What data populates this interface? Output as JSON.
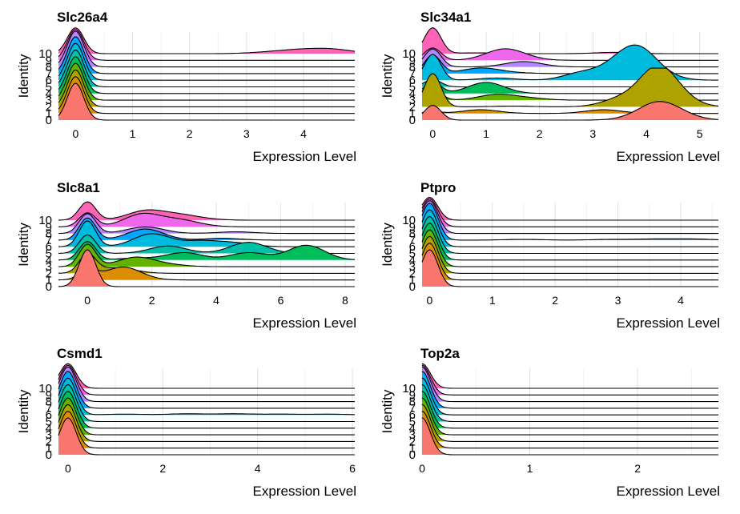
{
  "identity_levels": [
    "0",
    "1",
    "2",
    "3",
    "4",
    "5",
    "6",
    "7",
    "8",
    "9",
    "10"
  ],
  "cluster_colors": [
    "#F8766D",
    "#DB8E00",
    "#AEA200",
    "#64B200",
    "#00BD5C",
    "#00C1A7",
    "#00BADE",
    "#00A6FF",
    "#B385FF",
    "#EF67EB",
    "#FF63B6"
  ],
  "chart_data": [
    {
      "type": "ridgeline",
      "title": "Slc26a4",
      "xlabel": "Expression Level",
      "ylabel": "Identity",
      "xlim": [
        -0.3,
        4.9
      ],
      "x_ticks": [
        0,
        1,
        2,
        3,
        4
      ],
      "x_tick_labels": [
        "0",
        "1",
        "2",
        "3",
        "4"
      ],
      "series": [
        {
          "values": [
            [
              0,
              1.0
            ]
          ]
        },
        {
          "values": [
            [
              0,
              1.0
            ]
          ]
        },
        {
          "values": [
            [
              0,
              1.0
            ]
          ]
        },
        {
          "values": [
            [
              0,
              1.0
            ]
          ]
        },
        {
          "values": [
            [
              0,
              1.0
            ]
          ]
        },
        {
          "values": [
            [
              0,
              1.0
            ]
          ]
        },
        {
          "values": [
            [
              0,
              1.0
            ]
          ]
        },
        {
          "values": [
            [
              0,
              1.0
            ]
          ]
        },
        {
          "values": [
            [
              0,
              1.0
            ]
          ]
        },
        {
          "values": [
            [
              0,
              1.0
            ]
          ]
        },
        {
          "values": [
            [
              0,
              1.0
            ],
            [
              3.3,
              0.04
            ],
            [
              3.6,
              0.02
            ],
            [
              3.85,
              0.09
            ],
            [
              4.15,
              0.05
            ],
            [
              4.4,
              0.1
            ],
            [
              4.7,
              0.07
            ]
          ]
        }
      ]
    },
    {
      "type": "ridgeline",
      "title": "Slc34a1",
      "xlabel": "Expression Level",
      "ylabel": "Identity",
      "xlim": [
        -0.2,
        5.35
      ],
      "x_ticks": [
        0,
        1,
        2,
        3,
        4,
        5
      ],
      "x_tick_labels": [
        "0",
        "1",
        "2",
        "3",
        "4",
        "5"
      ],
      "series": [
        {
          "values": [
            [
              0,
              0.4
            ],
            [
              3.8,
              0.05
            ],
            [
              4.2,
              0.4
            ],
            [
              4.6,
              0.15
            ]
          ]
        },
        {
          "values": [
            [
              0,
              0.05
            ],
            [
              0.9,
              0.1
            ],
            [
              3.2,
              0.1
            ]
          ]
        },
        {
          "values": [
            [
              0,
              0.9
            ],
            [
              1.5,
              0.02
            ],
            [
              3.5,
              0.2
            ],
            [
              4.2,
              1.0
            ],
            [
              4.6,
              0.2
            ]
          ]
        },
        {
          "values": [
            [
              0,
              0.3
            ],
            [
              1.2,
              0.15
            ],
            [
              1.8,
              0.05
            ]
          ]
        },
        {
          "values": [
            [
              0,
              0.3
            ],
            [
              1.0,
              0.3
            ]
          ]
        },
        {
          "values": [
            [
              0,
              0.2
            ]
          ]
        },
        {
          "values": [
            [
              0,
              0.7
            ],
            [
              1.2,
              0.06
            ],
            [
              2.8,
              0.2
            ],
            [
              3.5,
              0.4
            ],
            [
              3.9,
              0.7
            ],
            [
              4.4,
              0.05
            ]
          ]
        },
        {
          "values": [
            [
              0,
              0.5
            ],
            [
              0.9,
              0.15
            ],
            [
              1.5,
              0.02
            ]
          ]
        },
        {
          "values": [
            [
              0,
              0.5
            ],
            [
              1.7,
              0.15
            ]
          ]
        },
        {
          "values": [
            [
              0,
              0.4
            ],
            [
              1.3,
              0.3
            ],
            [
              1.6,
              0.1
            ]
          ]
        },
        {
          "values": [
            [
              0,
              1.0
            ],
            [
              0.8,
              0.03
            ],
            [
              3.4,
              0.05
            ]
          ]
        }
      ]
    },
    {
      "type": "ridgeline",
      "title": "Slc8a1",
      "xlabel": "Expression Level",
      "ylabel": "Identity",
      "xlim": [
        -0.9,
        8.3
      ],
      "x_ticks": [
        0,
        2,
        4,
        6,
        8
      ],
      "x_tick_labels": [
        "0",
        "2",
        "4",
        "6",
        "8"
      ],
      "series": [
        {
          "values": [
            [
              0,
              1.0
            ]
          ]
        },
        {
          "values": [
            [
              0,
              0.3
            ],
            [
              1.1,
              0.35
            ]
          ]
        },
        {
          "values": [
            [
              0,
              0.5
            ],
            [
              0.9,
              0.15
            ]
          ]
        },
        {
          "values": [
            [
              0,
              0.6
            ],
            [
              1.5,
              0.25
            ],
            [
              2.5,
              0.05
            ]
          ]
        },
        {
          "values": [
            [
              0,
              0.5
            ],
            [
              1.5,
              0.05
            ],
            [
              3.0,
              0.2
            ],
            [
              5.0,
              0.2
            ],
            [
              6.8,
              0.4
            ]
          ]
        },
        {
          "values": [
            [
              0,
              0.5
            ],
            [
              2.5,
              0.2
            ],
            [
              5.0,
              0.3
            ]
          ]
        },
        {
          "values": [
            [
              0,
              0.7
            ],
            [
              2.0,
              0.35
            ],
            [
              3.5,
              0.15
            ],
            [
              4.6,
              0.1
            ]
          ]
        },
        {
          "values": [
            [
              0,
              0.6
            ],
            [
              1.8,
              0.3
            ],
            [
              4.2,
              0.05
            ]
          ]
        },
        {
          "values": [
            [
              0,
              0.6
            ],
            [
              1.8,
              0.2
            ],
            [
              4.6,
              0.05
            ]
          ]
        },
        {
          "values": [
            [
              0,
              0.5
            ],
            [
              1.7,
              0.45
            ],
            [
              2.8,
              0.2
            ],
            [
              3.3,
              0.05
            ]
          ]
        },
        {
          "values": [
            [
              0,
              0.8
            ],
            [
              1.8,
              0.4
            ],
            [
              2.8,
              0.2
            ],
            [
              3.5,
              0.05
            ]
          ]
        }
      ]
    },
    {
      "type": "ridgeline",
      "title": "Ptpro",
      "xlabel": "Expression Level",
      "ylabel": "Identity",
      "xlim": [
        -0.12,
        4.6
      ],
      "x_ticks": [
        0,
        1,
        2,
        3,
        4
      ],
      "x_tick_labels": [
        "0",
        "1",
        "2",
        "3",
        "4"
      ],
      "series": [
        {
          "values": [
            [
              0,
              1.0
            ]
          ]
        },
        {
          "values": [
            [
              0,
              1.0
            ]
          ]
        },
        {
          "values": [
            [
              0,
              1.0
            ]
          ]
        },
        {
          "values": [
            [
              0,
              1.0
            ]
          ]
        },
        {
          "values": [
            [
              0,
              1.0
            ]
          ]
        },
        {
          "values": [
            [
              0,
              1.0
            ]
          ]
        },
        {
          "values": [
            [
              0,
              1.0
            ]
          ]
        },
        {
          "values": [
            [
              0,
              1.0
            ],
            [
              1.5,
              0.02
            ],
            [
              2.9,
              0.02
            ],
            [
              3.6,
              0.03
            ],
            [
              4.2,
              0.03
            ]
          ]
        },
        {
          "values": [
            [
              0,
              1.0
            ]
          ]
        },
        {
          "values": [
            [
              0,
              1.0
            ]
          ]
        },
        {
          "values": [
            [
              0,
              1.0
            ]
          ]
        }
      ]
    },
    {
      "type": "ridgeline",
      "title": "Csmd1",
      "xlabel": "Expression Level",
      "ylabel": "Identity",
      "xlim": [
        -0.2,
        6.05
      ],
      "x_ticks": [
        0,
        2,
        4,
        6
      ],
      "x_tick_labels": [
        "0",
        "2",
        "4",
        "6"
      ],
      "series": [
        {
          "values": [
            [
              0,
              1.0
            ]
          ]
        },
        {
          "values": [
            [
              0,
              1.0
            ]
          ]
        },
        {
          "values": [
            [
              0,
              1.0
            ]
          ]
        },
        {
          "values": [
            [
              0,
              1.0
            ]
          ]
        },
        {
          "values": [
            [
              0,
              1.0
            ]
          ]
        },
        {
          "values": [
            [
              0,
              1.0
            ]
          ]
        },
        {
          "values": [
            [
              0,
              1.0
            ],
            [
              1.2,
              0.02
            ],
            [
              2.5,
              0.03
            ],
            [
              3.5,
              0.03
            ],
            [
              4.5,
              0.02
            ],
            [
              5.5,
              0.02
            ]
          ]
        },
        {
          "values": [
            [
              0,
              1.0
            ]
          ]
        },
        {
          "values": [
            [
              0,
              1.0
            ]
          ]
        },
        {
          "values": [
            [
              0,
              1.0
            ]
          ]
        },
        {
          "values": [
            [
              0,
              1.0
            ]
          ]
        }
      ]
    },
    {
      "type": "ridgeline",
      "title": "Top2a",
      "xlabel": "Expression Level",
      "ylabel": "Identity",
      "xlim": [
        0,
        2.75
      ],
      "x_ticks": [
        0,
        1,
        2
      ],
      "x_tick_labels": [
        "0",
        "1",
        "2"
      ],
      "series": [
        {
          "values": [
            [
              0,
              1.0
            ]
          ]
        },
        {
          "values": [
            [
              0,
              1.0
            ]
          ]
        },
        {
          "values": [
            [
              0,
              1.0
            ]
          ]
        },
        {
          "values": [
            [
              0,
              1.0
            ]
          ]
        },
        {
          "values": [
            [
              0,
              1.0
            ]
          ]
        },
        {
          "values": [
            [
              0,
              1.0
            ]
          ]
        },
        {
          "values": [
            [
              0,
              1.0
            ]
          ]
        },
        {
          "values": [
            [
              0,
              1.0
            ]
          ]
        },
        {
          "values": [
            [
              0,
              1.0
            ]
          ]
        },
        {
          "values": [
            [
              0,
              1.0
            ]
          ]
        },
        {
          "values": [
            [
              0,
              1.0
            ]
          ]
        }
      ]
    }
  ]
}
